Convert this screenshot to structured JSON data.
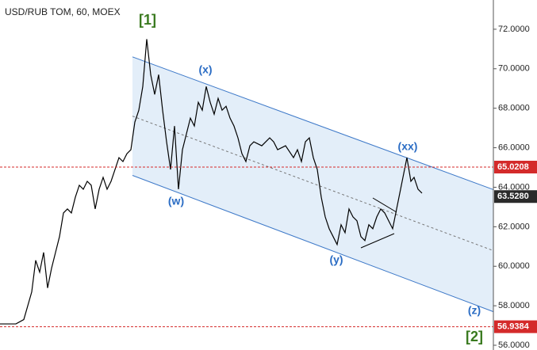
{
  "chart_data": {
    "type": "line",
    "title": "USD/RUB TOM, 60, MOEX",
    "x": [
      0,
      4,
      6,
      8,
      9,
      10,
      11,
      12,
      13,
      14,
      15,
      16,
      17,
      18,
      19,
      20,
      21,
      22,
      23,
      24,
      25,
      26,
      27,
      28,
      29,
      30,
      31,
      32,
      33,
      34,
      35,
      36,
      37,
      38,
      39,
      40,
      41,
      42,
      43,
      44,
      45,
      46,
      47,
      48,
      49,
      50,
      51,
      52,
      53,
      54,
      55,
      56,
      57,
      58,
      59,
      60,
      61,
      62,
      63,
      64,
      66,
      68,
      69,
      70,
      72,
      74,
      75,
      76,
      77,
      78,
      79,
      80,
      81,
      82,
      83,
      84,
      85,
      86,
      87,
      88,
      89,
      90,
      91,
      92,
      93,
      94,
      95,
      96,
      97,
      98,
      99,
      100,
      101,
      102,
      102.6,
      103.6,
      104.4,
      105.4,
      106.4
    ],
    "series": [
      {
        "color": "#000000",
        "values": [
          57.08,
          57.08,
          57.3,
          58.7,
          60.3,
          59.7,
          60.7,
          58.9,
          59.9,
          60.7,
          61.5,
          62.7,
          62.9,
          62.7,
          63.5,
          64.1,
          63.9,
          64.3,
          64.1,
          62.9,
          63.9,
          64.5,
          63.9,
          64.3,
          64.9,
          65.5,
          65.3,
          65.7,
          65.9,
          67.3,
          67.9,
          69.1,
          71.5,
          69.7,
          68.7,
          69.7,
          67.9,
          66.3,
          64.9,
          67.1,
          63.9,
          65.9,
          66.7,
          67.5,
          67.1,
          68.3,
          67.9,
          69.1,
          68.3,
          67.7,
          68.5,
          67.9,
          68.1,
          67.5,
          67.1,
          66.5,
          65.7,
          65.3,
          66.1,
          66.3,
          66.1,
          66.5,
          66.3,
          65.9,
          66.1,
          65.5,
          65.9,
          65.3,
          66.3,
          66.5,
          65.5,
          64.9,
          63.5,
          62.5,
          61.9,
          61.5,
          61.1,
          62.1,
          61.7,
          62.9,
          62.5,
          62.3,
          61.5,
          61.3,
          62.1,
          61.9,
          62.5,
          62.9,
          62.7,
          62.3,
          61.9,
          62.9,
          63.9,
          64.9,
          65.5,
          64.3,
          64.5,
          63.9,
          63.7
        ]
      }
    ],
    "xlim": [
      0,
      124.4
    ],
    "ylim": [
      55.76,
      73.48
    ],
    "yticks": [
      {
        "value": 56,
        "label": "56.0000"
      },
      {
        "value": 58,
        "label": "58.0000"
      },
      {
        "value": 60,
        "label": "60.0000"
      },
      {
        "value": 62,
        "label": "62.0000"
      },
      {
        "value": 64,
        "label": "64.0000"
      },
      {
        "value": 66,
        "label": "66.0000"
      },
      {
        "value": 68,
        "label": "68.0000"
      },
      {
        "value": 70,
        "label": "70.0000"
      },
      {
        "value": 72,
        "label": "72.0000"
      }
    ],
    "channel": {
      "x": [
        33.4,
        124.4
      ],
      "upper": [
        70.6,
        63.88
      ],
      "middle": [
        67.6,
        60.79
      ],
      "lower": [
        64.6,
        57.7
      ],
      "color": "#3c78c8",
      "fill": "#e3eef9"
    },
    "price_markers": [
      {
        "value": 65.0208,
        "label": "65.0208",
        "color": "#d42a2a",
        "line": true
      },
      {
        "value": 63.528,
        "label": "63.5280",
        "color": "#2a2a2a",
        "line": false
      },
      {
        "value": 56.9384,
        "label": "56.9384",
        "color": "#d42a2a",
        "line": true
      }
    ],
    "annotations": [
      {
        "text": "[1]",
        "color": "#3a7a1f"
      },
      {
        "text": "(x)",
        "color": "#2a6cc4"
      },
      {
        "text": "(w)",
        "color": "#2a6cc4"
      },
      {
        "text": "(xx)",
        "color": "#2a6cc4"
      },
      {
        "text": "(y)",
        "color": "#2a6cc4"
      },
      {
        "text": "(z)",
        "color": "#2a6cc4"
      },
      {
        "text": "[2]",
        "color": "#3a7a1f"
      }
    ]
  }
}
